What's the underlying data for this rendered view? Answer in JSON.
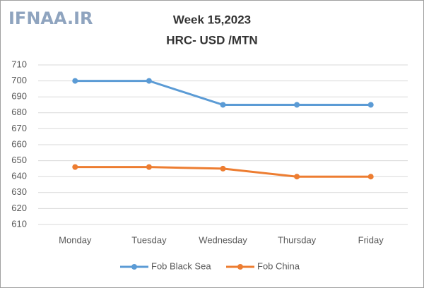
{
  "chart_data": {
    "type": "line",
    "watermark": "IFNAA.IR",
    "title": "Week 15,2023",
    "subtitle": "HRC- USD /MTN",
    "categories": [
      "Monday",
      "Tuesday",
      "Wednesday",
      "Thursday",
      "Friday"
    ],
    "series": [
      {
        "name": "Fob Black Sea",
        "color": "#5b9bd5",
        "values": [
          700,
          700,
          685,
          685,
          685
        ]
      },
      {
        "name": "Fob China",
        "color": "#ed7d31",
        "values": [
          646,
          646,
          645,
          640,
          640
        ]
      }
    ],
    "ylim": [
      610,
      710
    ],
    "yticks": [
      610,
      620,
      630,
      640,
      650,
      660,
      670,
      680,
      690,
      700,
      710
    ],
    "grid": true,
    "legend": "bottom"
  }
}
